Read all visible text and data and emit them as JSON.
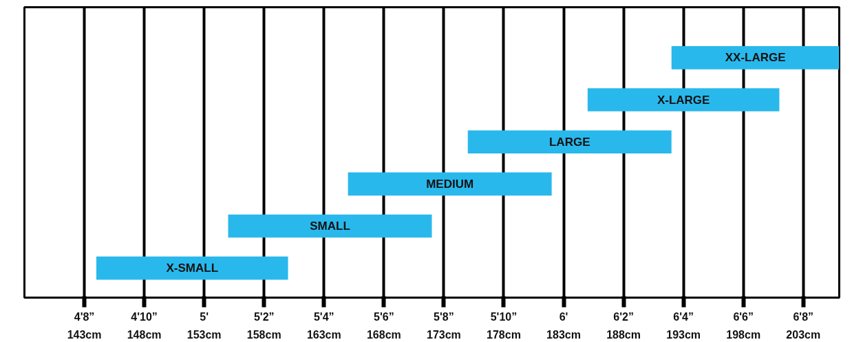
{
  "chart_data": {
    "type": "bar",
    "orientation": "horizontal",
    "categories": [
      "XX-LARGE",
      "X-LARGE",
      "LARGE",
      "MEDIUM",
      "SMALL",
      "X-SMALL"
    ],
    "base": [
      192,
      185,
      175,
      165,
      155,
      144
    ],
    "values": [
      14,
      16,
      17,
      17,
      17,
      16
    ],
    "color": "#29b8ec",
    "xlim": [
      138,
      206
    ],
    "xticks": [
      {
        "value": 143,
        "label": "143cm"
      },
      {
        "value": 148,
        "label": "148cm"
      },
      {
        "value": 153,
        "label": "153cm"
      },
      {
        "value": 158,
        "label": "158cm"
      },
      {
        "value": 163,
        "label": "163cm"
      },
      {
        "value": 168,
        "label": "168cm"
      },
      {
        "value": 173,
        "label": "173cm"
      },
      {
        "value": 178,
        "label": "178cm"
      },
      {
        "value": 183,
        "label": "183cm"
      },
      {
        "value": 188,
        "label": "188cm"
      },
      {
        "value": 193,
        "label": "193cm"
      },
      {
        "value": 198,
        "label": "198cm"
      },
      {
        "value": 203,
        "label": "203cm"
      }
    ],
    "x2lim": [
      4.5,
      6.7667
    ],
    "x2ticks": [
      {
        "value": 4.6667,
        "label": "4'8”"
      },
      {
        "value": 4.8333,
        "label": "4'10”"
      },
      {
        "value": 5,
        "label": "5'"
      },
      {
        "value": 5.1667,
        "label": "5'2”"
      },
      {
        "value": 5.3333,
        "label": "5'4”"
      },
      {
        "value": 5.5,
        "label": "5'6”"
      },
      {
        "value": 5.6667,
        "label": "5'8”"
      },
      {
        "value": 5.8333,
        "label": "5'10”"
      },
      {
        "value": 6,
        "label": "6'"
      },
      {
        "value": 6.1667,
        "label": "6'2”"
      },
      {
        "value": 6.3333,
        "label": "6'4”"
      },
      {
        "value": 6.5,
        "label": "6'6”"
      },
      {
        "value": 6.6667,
        "label": "6'8”"
      }
    ],
    "grid": "x"
  }
}
